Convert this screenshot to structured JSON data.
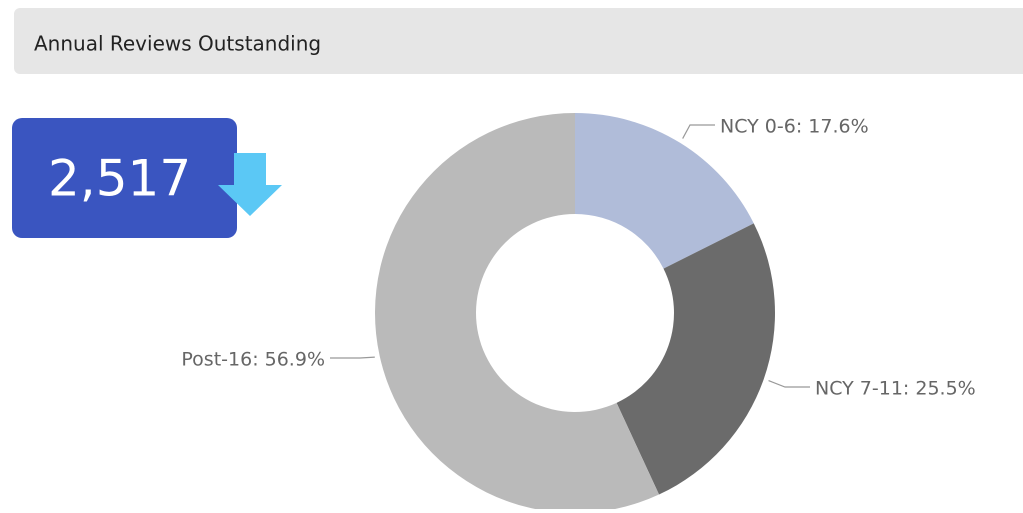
{
  "header": {
    "title": "Annual Reviews Outstanding"
  },
  "kpi": {
    "value": "2,517"
  },
  "chart_data": {
    "type": "donut",
    "values": [
      17.6,
      25.5,
      56.9
    ],
    "value_labels": [
      "NCY 0-6: 17.6%",
      "NCY 7-11: 25.5%",
      "Post-16: 56.9%"
    ],
    "colors": [
      "#b0bcd9",
      "#6b6b6b",
      "#bababa"
    ]
  }
}
